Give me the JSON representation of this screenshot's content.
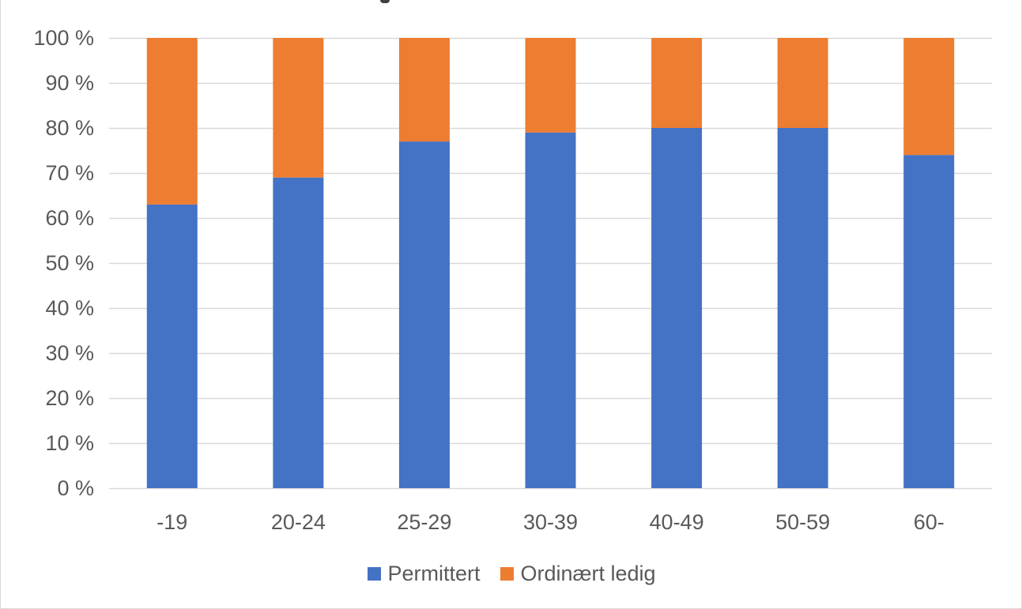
{
  "chart_data": {
    "type": "bar",
    "stacked": true,
    "categories": [
      "-19",
      "20-24",
      "25-29",
      "30-39",
      "40-49",
      "50-59",
      "60-"
    ],
    "series": [
      {
        "name": "Permittert",
        "color": "#4472C4",
        "values": [
          63,
          69,
          77,
          79,
          80,
          80,
          74
        ]
      },
      {
        "name": "Ordinært ledig",
        "color": "#ED7D31",
        "values": [
          37,
          31,
          23,
          21,
          20,
          20,
          26
        ]
      }
    ],
    "ylim": [
      0,
      100
    ],
    "yticks": [
      {
        "value": 0,
        "label": "0 %"
      },
      {
        "value": 10,
        "label": "10 %"
      },
      {
        "value": 20,
        "label": "20 %"
      },
      {
        "value": 30,
        "label": "30 %"
      },
      {
        "value": 40,
        "label": "40 %"
      },
      {
        "value": 50,
        "label": "50 %"
      },
      {
        "value": 60,
        "label": "60 %"
      },
      {
        "value": 70,
        "label": "70 %"
      },
      {
        "value": 80,
        "label": "80 %"
      },
      {
        "value": 90,
        "label": "90 %"
      },
      {
        "value": 100,
        "label": "100 %"
      }
    ],
    "grid": true,
    "legend_position": "bottom",
    "gridline_color": "#d9d9d9"
  }
}
